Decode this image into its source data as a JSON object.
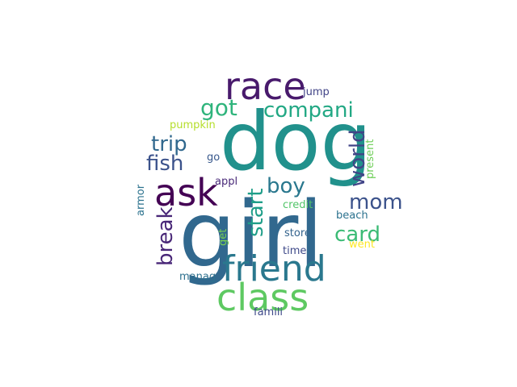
{
  "wordcloud": {
    "words": [
      {
        "id": "girl",
        "text": "girl",
        "color": "#31688e"
      },
      {
        "id": "dog",
        "text": "dog",
        "color": "#21918c"
      },
      {
        "id": "race",
        "text": "race",
        "color": "#481a6c"
      },
      {
        "id": "friend",
        "text": "friend",
        "color": "#2a788e"
      },
      {
        "id": "class",
        "text": "class",
        "color": "#5ec962"
      },
      {
        "id": "ask",
        "text": "ask",
        "color": "#440154"
      },
      {
        "id": "compani",
        "text": "compani",
        "color": "#22a884"
      },
      {
        "id": "got",
        "text": "got",
        "color": "#2fb47c"
      },
      {
        "id": "trip",
        "text": "trip",
        "color": "#31688e"
      },
      {
        "id": "fish",
        "text": "fish",
        "color": "#3b528b"
      },
      {
        "id": "boy",
        "text": "boy",
        "color": "#2a788e"
      },
      {
        "id": "world",
        "text": "world",
        "color": "#414487"
      },
      {
        "id": "mom",
        "text": "mom",
        "color": "#3b528b"
      },
      {
        "id": "start",
        "text": "start",
        "color": "#1f9e89"
      },
      {
        "id": "break",
        "text": "break",
        "color": "#482677"
      },
      {
        "id": "card",
        "text": "card",
        "color": "#3bbb75"
      },
      {
        "id": "jump",
        "text": "jump",
        "color": "#414487"
      },
      {
        "id": "pumpkin",
        "text": "pumpkin",
        "color": "#b5de2b"
      },
      {
        "id": "go",
        "text": "go",
        "color": "#38588c"
      },
      {
        "id": "appl",
        "text": "appl",
        "color": "#482878"
      },
      {
        "id": "armor",
        "text": "armor",
        "color": "#2c728e"
      },
      {
        "id": "present",
        "text": "present",
        "color": "#6ece58"
      },
      {
        "id": "credit",
        "text": "credit",
        "color": "#52c569"
      },
      {
        "id": "beach",
        "text": "beach",
        "color": "#2c728e"
      },
      {
        "id": "get",
        "text": "get",
        "color": "#7ad151"
      },
      {
        "id": "store",
        "text": "store",
        "color": "#33638d"
      },
      {
        "id": "time",
        "text": "time",
        "color": "#3e4989"
      },
      {
        "id": "went",
        "text": "went",
        "color": "#fde725"
      },
      {
        "id": "manag",
        "text": "manag",
        "color": "#2d708e"
      },
      {
        "id": "famili",
        "text": "famili",
        "color": "#3e4989"
      }
    ]
  }
}
